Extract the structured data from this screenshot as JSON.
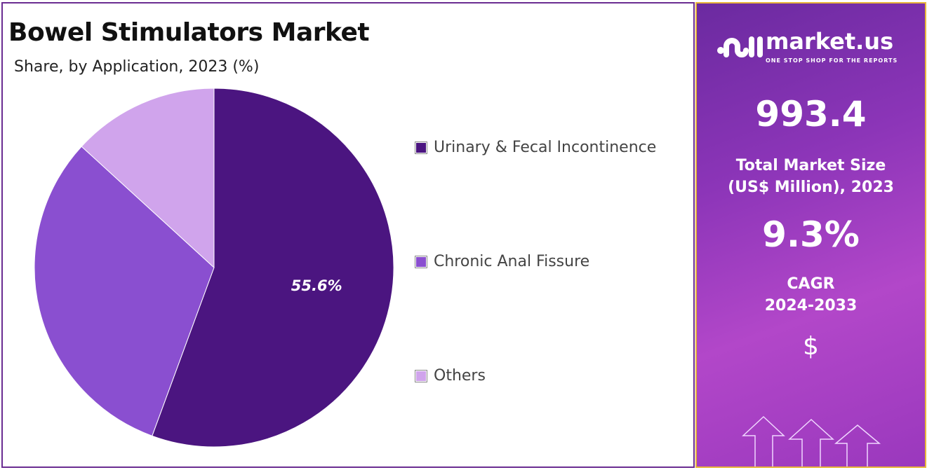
{
  "chart_data": {
    "type": "pie",
    "title": "Bowel Stimulators Market",
    "subtitle": "Share, by Application, 2023 (%)",
    "categories": [
      "Urinary & Fecal Incontinence",
      "Chronic Anal Fissure",
      "Others"
    ],
    "values": [
      55.6,
      31.2,
      13.2
    ],
    "data_labels": [
      "55.6%",
      "",
      ""
    ],
    "colors": [
      "#4b1580",
      "#8a4fd0",
      "#d0a4ec"
    ],
    "legend_position": "right"
  },
  "sidebar": {
    "logo_name": "market.us",
    "logo_tagline": "ONE STOP SHOP FOR THE REPORTS",
    "market_size": "993.4",
    "market_size_label_1": "Total Market Size",
    "market_size_label_2": "(US$ Million), 2023",
    "cagr": "9.3%",
    "cagr_label_1": "CAGR",
    "cagr_label_2": "2024-2033",
    "currency_symbol": "$"
  }
}
